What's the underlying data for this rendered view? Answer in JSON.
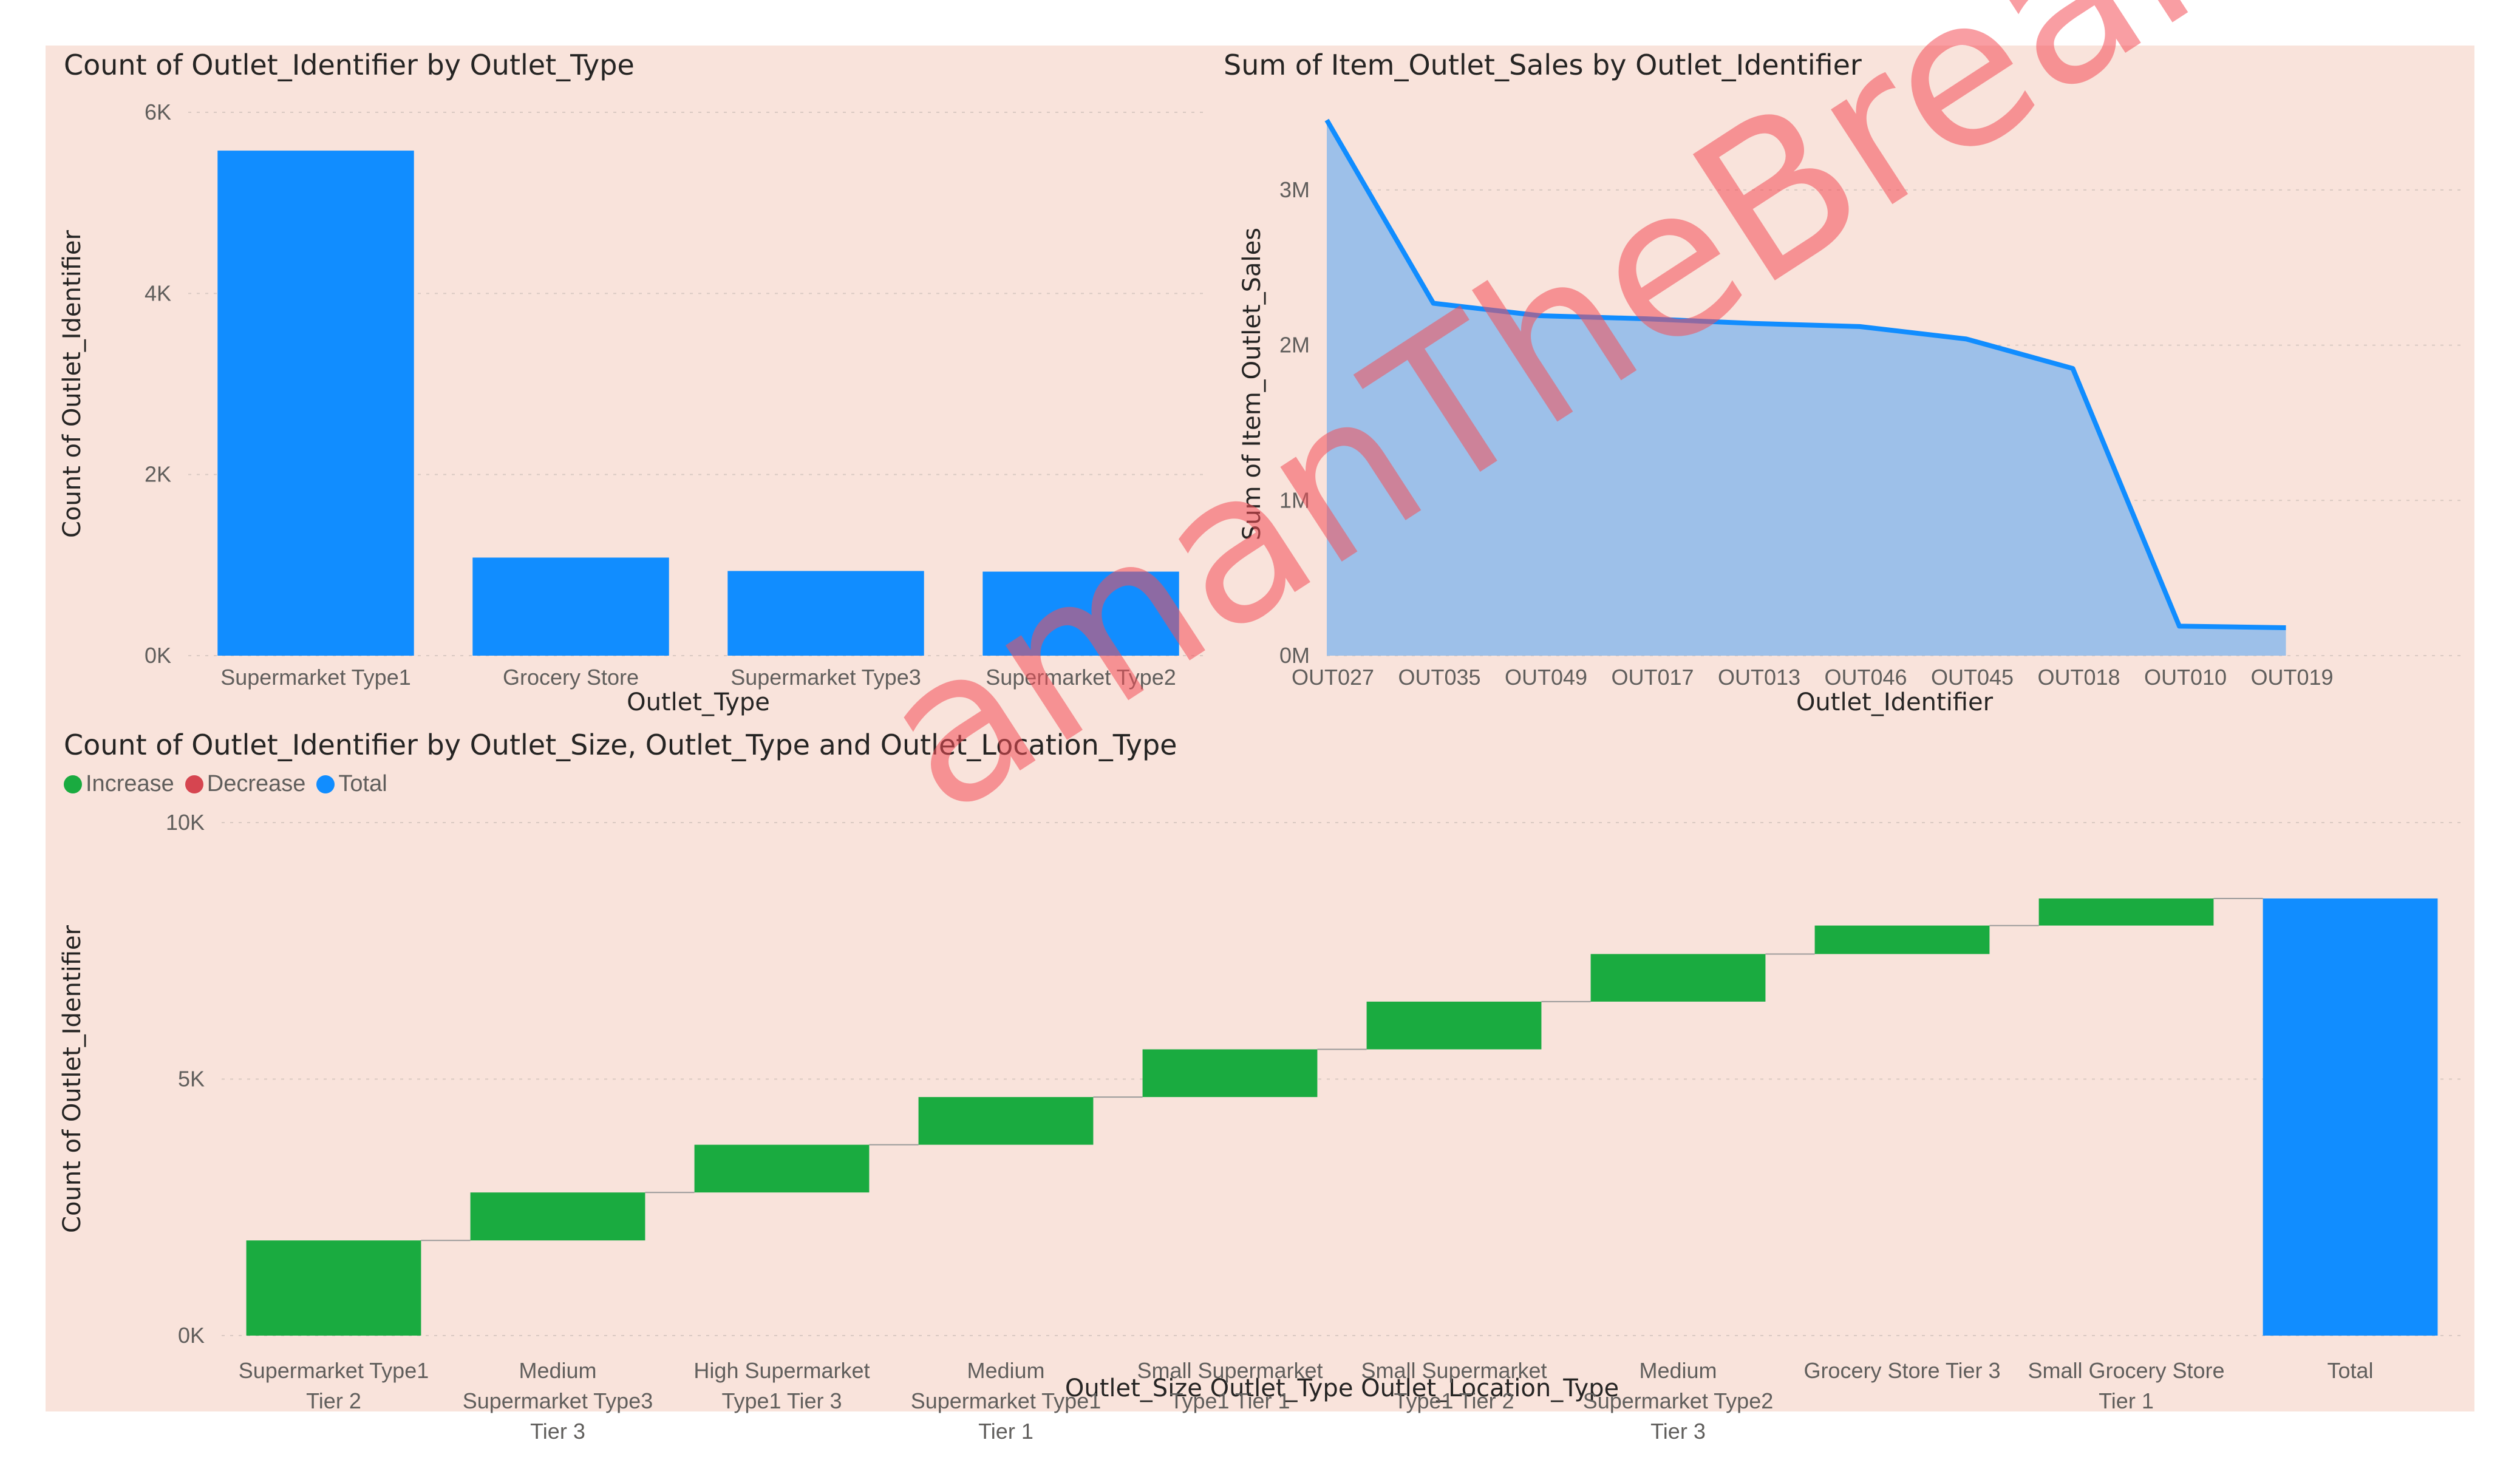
{
  "colors": {
    "bar": "#118dff",
    "area_fill": "#9dc0e9",
    "increase": "#1aab40",
    "decrease": "#d64550",
    "total": "#118dff",
    "panel_bg": "#f9e3db"
  },
  "watermark": {
    "text": "amanTheBreaker"
  },
  "chart_data": [
    {
      "type": "bar",
      "title": "Count of Outlet_Identifier by Outlet_Type",
      "xlabel": "Outlet_Type",
      "ylabel": "Count of Outlet_Identifier",
      "ylim": [
        0,
        6000
      ],
      "yticks": [
        {
          "value": 0,
          "label": "0K"
        },
        {
          "value": 2000,
          "label": "2K"
        },
        {
          "value": 4000,
          "label": "4K"
        },
        {
          "value": 6000,
          "label": "6K"
        }
      ],
      "grid": true,
      "categories": [
        "Supermarket Type1",
        "Grocery Store",
        "Supermarket Type3",
        "Supermarket Type2"
      ],
      "values": [
        5577,
        1083,
        935,
        928
      ]
    },
    {
      "type": "area",
      "title": "Sum of Item_Outlet_Sales by Outlet_Identifier",
      "xlabel": "Outlet_Identifier",
      "ylabel": "Sum of Item_Outlet_Sales",
      "ylim": [
        0,
        3500000
      ],
      "yticks": [
        {
          "value": 0,
          "label": "0M"
        },
        {
          "value": 1000000,
          "label": "1M"
        },
        {
          "value": 2000000,
          "label": "2M"
        },
        {
          "value": 3000000,
          "label": "3M"
        }
      ],
      "grid": true,
      "categories": [
        "OUT027",
        "OUT035",
        "OUT049",
        "OUT017",
        "OUT013",
        "OUT046",
        "OUT045",
        "OUT018",
        "OUT010",
        "OUT019"
      ],
      "values": [
        3450000,
        2270000,
        2190000,
        2170000,
        2140000,
        2120000,
        2040000,
        1850000,
        190000,
        180000
      ]
    },
    {
      "type": "waterfall",
      "title": "Count of Outlet_Identifier by Outlet_Size, Outlet_Type and Outlet_Location_Type",
      "xlabel": "Outlet_Size Outlet_Type Outlet_Location_Type",
      "ylabel": "Count of Outlet_Identifier",
      "ylim": [
        0,
        10000
      ],
      "yticks": [
        {
          "value": 0,
          "label": "0K"
        },
        {
          "value": 5000,
          "label": "5K"
        },
        {
          "value": 10000,
          "label": "10K"
        }
      ],
      "grid": true,
      "legend": {
        "placement": "top-left",
        "items": [
          {
            "label": "Increase",
            "color": "#1aab40"
          },
          {
            "label": "Decrease",
            "color": "#d64550"
          },
          {
            "label": "Total",
            "color": "#118dff"
          }
        ]
      },
      "categories": [
        [
          "Supermarket Type1",
          "Tier 2"
        ],
        [
          "Medium",
          "Supermarket Type3",
          "Tier 3"
        ],
        [
          "High Supermarket",
          "Type1 Tier 3"
        ],
        [
          "Medium",
          "Supermarket Type1",
          "Tier 1"
        ],
        [
          "Small Supermarket",
          "Type1 Tier 1"
        ],
        [
          "Small Supermarket",
          "Type1 Tier 2"
        ],
        [
          "Medium",
          "Supermarket Type2",
          "Tier 3"
        ],
        [
          "Grocery Store Tier 3"
        ],
        [
          "Small Grocery Store",
          "Tier 1"
        ],
        [
          "Total"
        ]
      ],
      "values": [
        1855,
        935,
        930,
        930,
        930,
        930,
        928,
        555,
        528,
        8521
      ],
      "kinds": [
        "increase",
        "increase",
        "increase",
        "increase",
        "increase",
        "increase",
        "increase",
        "increase",
        "increase",
        "total"
      ]
    }
  ]
}
